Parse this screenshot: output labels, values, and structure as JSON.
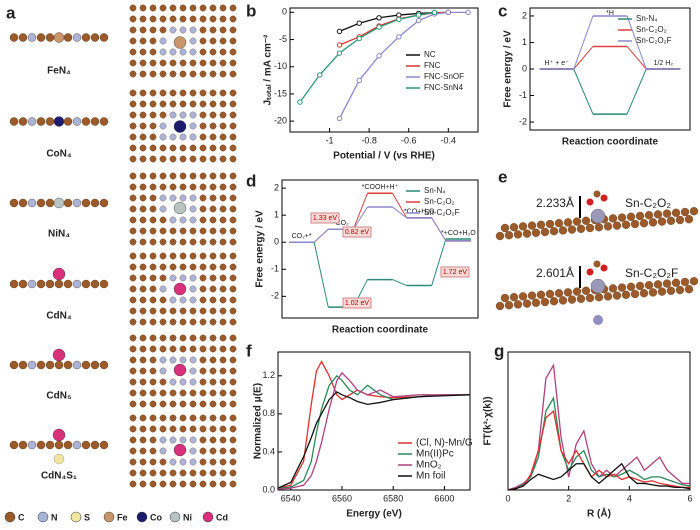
{
  "panels": [
    "a",
    "b",
    "c",
    "d",
    "e",
    "f",
    "g"
  ],
  "structures": [
    "FeN₄",
    "CoN₄",
    "NiN₄",
    "CdN₄",
    "CdN₅",
    "CdN₄S₁"
  ],
  "atoms": [
    {
      "label": "C",
      "color": "#9a5a2a"
    },
    {
      "label": "N",
      "color": "#aab4d8"
    },
    {
      "label": "S",
      "color": "#f0e6a0"
    },
    {
      "label": "Fe",
      "color": "#c8966a"
    },
    {
      "label": "Co",
      "color": "#1c1c6e"
    },
    {
      "label": "Ni",
      "color": "#b8c4c4"
    },
    {
      "label": "Cd",
      "color": "#d8307a"
    }
  ],
  "panel_e": {
    "labels": [
      "2.233Å",
      "Sn-C₂O₂",
      "2.601Å",
      "Sn-C₂O₂F"
    ]
  },
  "chart_data": [
    {
      "type": "line",
      "xlabel": "Potential / V (vs RHE)",
      "ylabel": "Jₜₒₜₐₗ / mA cm⁻²",
      "xlim": [
        -1.2,
        -0.25
      ],
      "xticks": [
        -1.0,
        -0.8,
        -0.6,
        -0.4
      ],
      "ylim": [
        -22,
        0.8
      ],
      "yticks": [
        0,
        -5,
        -10,
        -15,
        -20
      ],
      "legend": "lower right",
      "markers": true,
      "series": [
        {
          "name": "NC",
          "color": "#111111",
          "x": [
            -0.95,
            -0.85,
            -0.75,
            -0.65,
            -0.55,
            -0.47,
            -0.4
          ],
          "values": [
            -3.5,
            -2,
            -1,
            -0.5,
            -0.2,
            -0.05,
            0
          ]
        },
        {
          "name": "FNC",
          "color": "#e03030",
          "x": [
            -0.95,
            -0.85,
            -0.75,
            -0.65,
            -0.55,
            -0.47,
            -0.4
          ],
          "values": [
            -6,
            -4.5,
            -2.5,
            -1.2,
            -0.5,
            -0.1,
            0
          ]
        },
        {
          "name": "FNC-SnOF",
          "color": "#8888cc",
          "x": [
            -0.95,
            -0.85,
            -0.75,
            -0.65,
            -0.55,
            -0.47,
            -0.4,
            -0.3
          ],
          "values": [
            -19.5,
            -12.5,
            -8,
            -4.5,
            -1.5,
            -0.3,
            0,
            0
          ]
        },
        {
          "name": "FNC-SnN4",
          "color": "#2a9a78",
          "x": [
            -1.15,
            -1.05,
            -0.95,
            -0.85,
            -0.75,
            -0.65,
            -0.55,
            -0.47
          ],
          "values": [
            -16.5,
            -11.5,
            -7.5,
            -4.8,
            -2.7,
            -1.3,
            -0.5,
            0
          ]
        }
      ]
    },
    {
      "type": "step",
      "xlabel": "Reaction coordinate",
      "ylabel": "Free energy / eV",
      "categories": [
        "H⁺ + e⁻",
        "*H",
        "1/2 H₂"
      ],
      "ylim": [
        -2.3,
        2.3
      ],
      "yticks": [
        -2,
        -1,
        0,
        1,
        2
      ],
      "legend": "upper right",
      "series": [
        {
          "name": "Sn-N₄",
          "color": "#2a8a78",
          "values": [
            0,
            -1.7,
            0
          ]
        },
        {
          "name": "Sn-C₂O₂",
          "color": "#e04040",
          "values": [
            0,
            0.85,
            0
          ]
        },
        {
          "name": "Sn-C₂O₂F",
          "color": "#8888cc",
          "values": [
            0,
            2,
            0
          ]
        }
      ]
    },
    {
      "type": "step",
      "xlabel": "Reaction coordinate",
      "ylabel": "Free energy / eV",
      "categories": [
        "CO₂+*",
        "*CO₂",
        "*COOH+H⁺",
        "*CO+H₂O",
        "*+CO+H₂O"
      ],
      "ylim": [
        -2.8,
        2.3
      ],
      "yticks": [
        -2,
        -1,
        0,
        1,
        2
      ],
      "legend": "upper right",
      "annotations": [
        "1.33 eV",
        "0.82 eV",
        "1.02 eV",
        "1.72 eV"
      ],
      "series": [
        {
          "name": "Sn-N₄",
          "color": "#2a8a78",
          "values": [
            0,
            -2.4,
            -1.38,
            -1.6,
            0.12
          ]
        },
        {
          "name": "Sn-C₂O₂",
          "color": "#e04040",
          "values": [
            0,
            0.48,
            1.81,
            0.9,
            0.05
          ]
        },
        {
          "name": "Sn-C₂O₂F",
          "color": "#8888cc",
          "values": [
            0,
            0.48,
            1.3,
            0.9,
            0.05
          ]
        }
      ]
    },
    {
      "type": "line",
      "xlabel": "Energy (eV)",
      "ylabel": "Normalized μ(E)",
      "xlim": [
        6535,
        6610
      ],
      "xticks": [
        6540,
        6560,
        6580,
        6600
      ],
      "ylim": [
        0,
        1.45
      ],
      "yticks": [
        {
          "value": 0,
          "label": "0.0"
        },
        0.4,
        0.8,
        1.2
      ],
      "legend": "lower right",
      "x": [
        6535,
        6540,
        6545,
        6548,
        6550,
        6552,
        6555,
        6558,
        6560,
        6563,
        6566,
        6570,
        6575,
        6580,
        6590,
        6600,
        6610
      ],
      "series": [
        {
          "name": "(Cl, N)-Mn/G",
          "color": "#e03030",
          "values": [
            0.02,
            0.05,
            0.3,
            0.9,
            1.25,
            1.35,
            1.2,
            1.0,
            0.95,
            1.0,
            1.05,
            1.0,
            0.98,
            0.97,
            0.98,
            1.0,
            1.0
          ]
        },
        {
          "name": "Mn(II)Pc",
          "color": "#2a8a5a",
          "values": [
            0.02,
            0.03,
            0.1,
            0.3,
            0.6,
            0.85,
            1.1,
            1.2,
            1.15,
            1.05,
            1.0,
            1.1,
            1.0,
            0.95,
            0.98,
            1.0,
            1.0
          ]
        },
        {
          "name": "MnO₂",
          "color": "#b04080",
          "values": [
            0.01,
            0.02,
            0.05,
            0.15,
            0.3,
            0.5,
            0.85,
            1.15,
            1.23,
            1.15,
            1.05,
            1.0,
            1.05,
            0.98,
            1.0,
            1.0,
            1.0
          ]
        },
        {
          "name": "Mn foil",
          "color": "#111111",
          "values": [
            0.02,
            0.08,
            0.35,
            0.55,
            0.7,
            0.8,
            0.95,
            1.03,
            1.0,
            0.97,
            0.93,
            0.9,
            0.92,
            0.95,
            0.98,
            0.99,
            1.0
          ]
        }
      ]
    },
    {
      "type": "line",
      "xlabel": "R (Å)",
      "ylabel": "FT(k³·χ(k))",
      "xlim": [
        0,
        6
      ],
      "xticks": [
        0,
        2,
        4,
        6
      ],
      "ylim": [
        0,
        1.05
      ],
      "x": [
        0,
        0.25,
        0.5,
        0.75,
        1,
        1.25,
        1.5,
        1.75,
        2,
        2.25,
        2.5,
        2.75,
        3,
        3.25,
        3.5,
        3.75,
        4,
        4.25,
        4.5,
        4.75,
        5,
        5.25,
        5.5,
        5.75,
        6
      ],
      "series": [
        {
          "color": "#b04080",
          "values": [
            0,
            0.02,
            0.05,
            0.1,
            0.3,
            0.85,
            0.95,
            0.4,
            0.1,
            0.35,
            0.45,
            0.2,
            0.1,
            0.15,
            0.1,
            0.15,
            0.2,
            0.25,
            0.15,
            0.2,
            0.25,
            0.15,
            0.1,
            0.05,
            0.05
          ]
        },
        {
          "color": "#2a8a5a",
          "values": [
            0,
            0.01,
            0.04,
            0.1,
            0.25,
            0.6,
            0.7,
            0.3,
            0.15,
            0.25,
            0.3,
            0.15,
            0.1,
            0.12,
            0.1,
            0.12,
            0.15,
            0.12,
            0.08,
            0.1,
            0.1,
            0.08,
            0.06,
            0.04,
            0.03
          ]
        },
        {
          "color": "#e03030",
          "values": [
            0,
            0.01,
            0.03,
            0.12,
            0.3,
            0.55,
            0.6,
            0.3,
            0.2,
            0.3,
            0.2,
            0.1,
            0.15,
            0.1,
            0.12,
            0.08,
            0.1,
            0.08,
            0.06,
            0.07,
            0.05,
            0.04,
            0.03,
            0.02,
            0.02
          ]
        },
        {
          "color": "#111111",
          "values": [
            0,
            0.01,
            0.03,
            0.08,
            0.12,
            0.1,
            0.08,
            0.1,
            0.15,
            0.2,
            0.2,
            0.1,
            0.05,
            0.1,
            0.15,
            0.2,
            0.1,
            0.05,
            0.05,
            0.04,
            0.03,
            0.03,
            0.02,
            0.02,
            0.01
          ]
        }
      ]
    }
  ]
}
